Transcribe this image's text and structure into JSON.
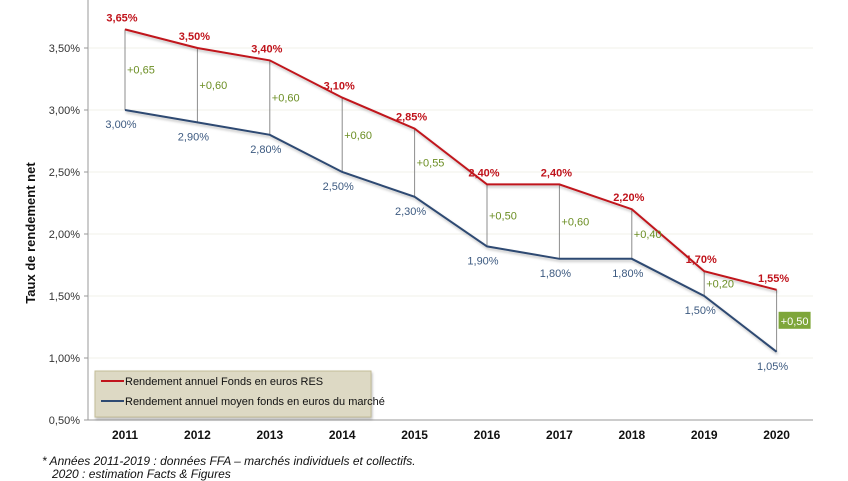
{
  "chart_data": {
    "type": "line",
    "title": "",
    "xlabel": "",
    "ylabel": "Taux de rendement net",
    "categories": [
      "2011",
      "2012",
      "2013",
      "2014",
      "2015",
      "2016",
      "2017",
      "2018",
      "2019",
      "2020"
    ],
    "ylim": [
      0.5,
      3.9
    ],
    "yticks": [
      0.5,
      1.0,
      1.5,
      2.0,
      2.5,
      3.0,
      3.5
    ],
    "ytick_labels": [
      "0,50%",
      "1,00%",
      "1,50%",
      "2,00%",
      "2,50%",
      "3,00%",
      "3,50%"
    ],
    "grid": true,
    "legend_position": "bottom-left",
    "series": [
      {
        "name": "Rendement annuel Fonds en euros RES",
        "color": "#c0141c",
        "values": [
          3.65,
          3.5,
          3.4,
          3.1,
          2.85,
          2.4,
          2.4,
          2.2,
          1.7,
          1.55
        ],
        "labels": [
          "3,65%",
          "3,50%",
          "3,40%",
          "3,10%",
          "2,85%",
          "2,40%",
          "2,40%",
          "2,20%",
          "1,70%",
          "1,55%"
        ]
      },
      {
        "name": "Rendement annuel moyen fonds en euros du marché",
        "color": "#2e4a72",
        "values": [
          3.0,
          2.9,
          2.8,
          2.5,
          2.3,
          1.9,
          1.8,
          1.8,
          1.5,
          1.05
        ],
        "labels": [
          "3,00%",
          "2,90%",
          "2,80%",
          "2,50%",
          "2,30%",
          "1,90%",
          "1,80%",
          "1,80%",
          "1,50%",
          "1,05%"
        ]
      }
    ],
    "differences": {
      "color": "#6b8e23",
      "highlight_color": "#7ea63a",
      "labels": [
        "+0,65",
        "+0,60",
        "+0,60",
        "+0,60",
        "+0,55",
        "+0,50",
        "+0,60",
        "+0,40",
        "+0,20",
        "+0,50"
      ],
      "highlighted_index": 9
    }
  },
  "footnote": "* Années 2011-2019 : données FFA – marchés individuels et collectifs.\n   2020 : estimation Facts & Figures"
}
